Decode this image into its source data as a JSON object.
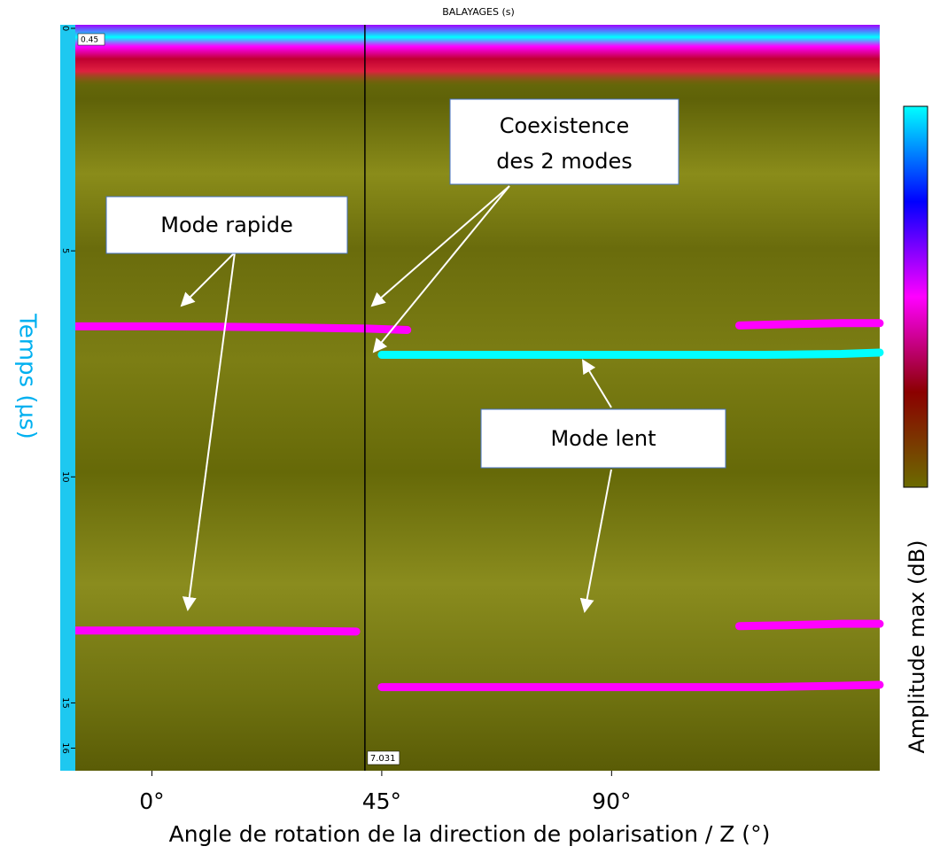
{
  "chart_data": {
    "type": "bscan",
    "title": "BALAYAGES (s)",
    "x_label": "Angle de rotation de la direction de polarisation / Z (°)",
    "y_label": "Temps (µs)",
    "colorbar_label": "Amplitude max (dB)",
    "colorbar_colors": [
      "#00ffff",
      "#0000ff",
      "#ff00ff",
      "#8b0000",
      "#6b6b00"
    ],
    "xlim": [
      -15,
      142.5
    ],
    "ylim": [
      0,
      16.5
    ],
    "xticks": [
      {
        "value": 0,
        "label": "0°"
      },
      {
        "value": 45,
        "label": "45°"
      },
      {
        "value": 90,
        "label": "90°"
      }
    ],
    "yticks": [
      0,
      5,
      10,
      15,
      16
    ],
    "top_label": "0.45",
    "cursor_x": 41.7,
    "cursor_label": "7.031",
    "series": [
      {
        "color": "#ff00ff",
        "x": [
          -15,
          0,
          15,
          30,
          42,
          50
        ],
        "values": [
          6.67,
          6.67,
          6.68,
          6.7,
          6.72,
          6.75
        ]
      },
      {
        "color": "#00ffff",
        "x": [
          45,
          60,
          75,
          90,
          105,
          120,
          135,
          142.5
        ],
        "values": [
          7.3,
          7.3,
          7.3,
          7.3,
          7.3,
          7.3,
          7.28,
          7.25
        ]
      },
      {
        "color": "#ff00ff",
        "x": [
          115,
          125,
          135,
          142.5
        ],
        "values": [
          6.65,
          6.62,
          6.6,
          6.6
        ]
      },
      {
        "color": "#ff00ff",
        "x": [
          -15,
          0,
          20,
          40
        ],
        "values": [
          13.4,
          13.4,
          13.4,
          13.42
        ]
      },
      {
        "color": "#ff00ff",
        "x": [
          115,
          125,
          135,
          142.5
        ],
        "values": [
          13.3,
          13.28,
          13.25,
          13.25
        ]
      },
      {
        "color": "#ff00ff",
        "x": [
          45,
          60,
          75,
          90,
          105,
          120,
          135,
          142.5
        ],
        "values": [
          14.65,
          14.65,
          14.65,
          14.65,
          14.65,
          14.65,
          14.62,
          14.6
        ]
      }
    ],
    "annotations": [
      "Mode rapide",
      "Coexistence",
      "des 2 modes",
      "Mode lent"
    ]
  }
}
